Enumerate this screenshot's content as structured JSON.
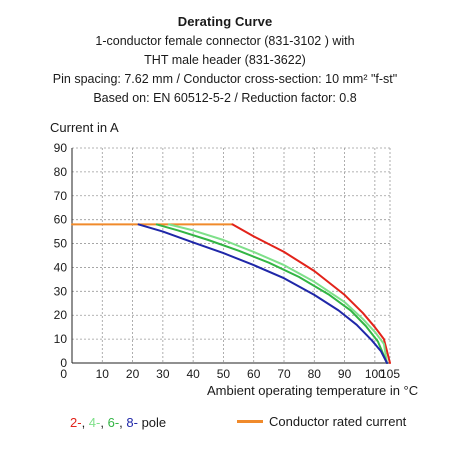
{
  "chart_data": {
    "type": "line",
    "title": "Derating Curve",
    "subtitle_lines": [
      "1-conductor female connector (831-3102 ) with",
      "THT male header (831-3622)",
      "Pin spacing: 7.62 mm / Conductor cross-section: 10 mm² \"f-st\"",
      "Based on: EN 60512-5-2 / Reduction factor: 0.8"
    ],
    "xlabel": "Ambient operating temperature in °C",
    "ylabel": "Current in A",
    "xlim": [
      0,
      105
    ],
    "ylim": [
      0,
      90
    ],
    "x_ticks": [
      0,
      10,
      20,
      30,
      40,
      50,
      60,
      70,
      80,
      90,
      100,
      105
    ],
    "y_ticks": [
      0,
      10,
      20,
      30,
      40,
      50,
      60,
      70,
      80,
      90
    ],
    "grid": true,
    "series": [
      {
        "key": "rated",
        "color": "#f08a2b",
        "x": [
          0,
          53
        ],
        "y": [
          58,
          58
        ]
      },
      {
        "key": "2",
        "color": "#e2231a",
        "x": [
          53,
          60,
          70,
          80,
          90,
          96,
          100,
          103,
          105
        ],
        "y": [
          58,
          53,
          46.5,
          38.5,
          28.5,
          21,
          15,
          10,
          0
        ]
      },
      {
        "key": "4",
        "color": "#7fe08a",
        "x": [
          32,
          40,
          50,
          60,
          70,
          80,
          90,
          96,
          100,
          103,
          104
        ],
        "y": [
          58,
          55.5,
          51.5,
          46.5,
          41,
          34,
          25.5,
          18.5,
          13,
          8,
          0
        ]
      },
      {
        "key": "6",
        "color": "#33b544",
        "x": [
          28,
          35,
          45,
          55,
          65,
          75,
          85,
          92,
          97,
          101,
          104
        ],
        "y": [
          58,
          55.5,
          51.5,
          47,
          42,
          36,
          28.5,
          22,
          15.5,
          9,
          0
        ]
      },
      {
        "key": "8",
        "color": "#1f27a8",
        "x": [
          22,
          30,
          40,
          50,
          60,
          70,
          80,
          88,
          94,
          99,
          102,
          104
        ],
        "y": [
          58,
          55,
          50.5,
          46,
          41,
          35.5,
          28.5,
          22,
          16,
          9.5,
          5,
          0
        ]
      }
    ],
    "legend": {
      "left": {
        "parts": [
          {
            "text": "2-",
            "color": "#e2231a"
          },
          {
            "text": ", ",
            "color": "#1a1a1a"
          },
          {
            "text": "4-",
            "color": "#7fe08a"
          },
          {
            "text": ", ",
            "color": "#1a1a1a"
          },
          {
            "text": "6-",
            "color": "#33b544"
          },
          {
            "text": ", ",
            "color": "#1a1a1a"
          },
          {
            "text": "8-",
            "color": "#1f27a8"
          },
          {
            "text": " pole",
            "color": "#1a1a1a"
          }
        ]
      },
      "right": {
        "text": "Conductor rated current",
        "color": "#f08a2b"
      }
    }
  }
}
